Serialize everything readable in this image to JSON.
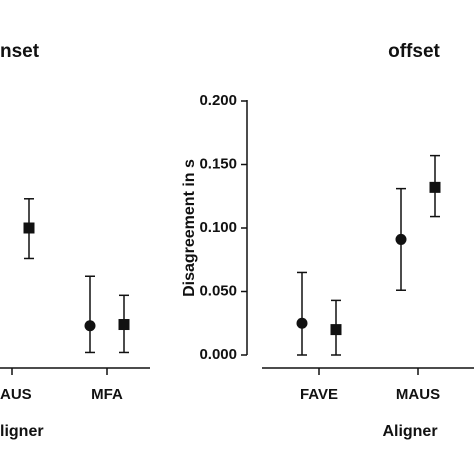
{
  "chart_data": [
    {
      "type": "errorbar",
      "title": "nset",
      "x_label": "ligner",
      "categories": [
        "AUS",
        "MFA"
      ],
      "ylim": [
        0,
        0.2
      ],
      "series": [
        {
          "marker": "circle",
          "values": [
            null,
            0.023
          ],
          "lower": [
            null,
            0.002
          ],
          "upper": [
            null,
            0.062
          ]
        },
        {
          "marker": "square",
          "values": [
            0.1,
            0.024
          ],
          "lower": [
            0.076,
            0.002
          ],
          "upper": [
            0.123,
            0.047
          ]
        }
      ]
    },
    {
      "type": "errorbar",
      "title": "offset",
      "x_label": "Aligner",
      "y_label": "Disagreement in s",
      "categories": [
        "FAVE",
        "MAUS"
      ],
      "ylim": [
        0,
        0.2
      ],
      "yticks": [
        {
          "value": 0,
          "label": "0.000"
        },
        {
          "value": 0.05,
          "label": "0.050"
        },
        {
          "value": 0.1,
          "label": "0.100"
        },
        {
          "value": 0.15,
          "label": "0.150"
        },
        {
          "value": 0.2,
          "label": "0.200"
        }
      ],
      "series": [
        {
          "marker": "circle",
          "values": [
            0.025,
            0.091
          ],
          "lower": [
            0,
            0.051
          ],
          "upper": [
            0.065,
            0.131
          ]
        },
        {
          "marker": "square",
          "values": [
            0.02,
            0.132
          ],
          "lower": [
            0,
            0.109
          ],
          "upper": [
            0.043,
            0.157
          ]
        }
      ]
    }
  ]
}
